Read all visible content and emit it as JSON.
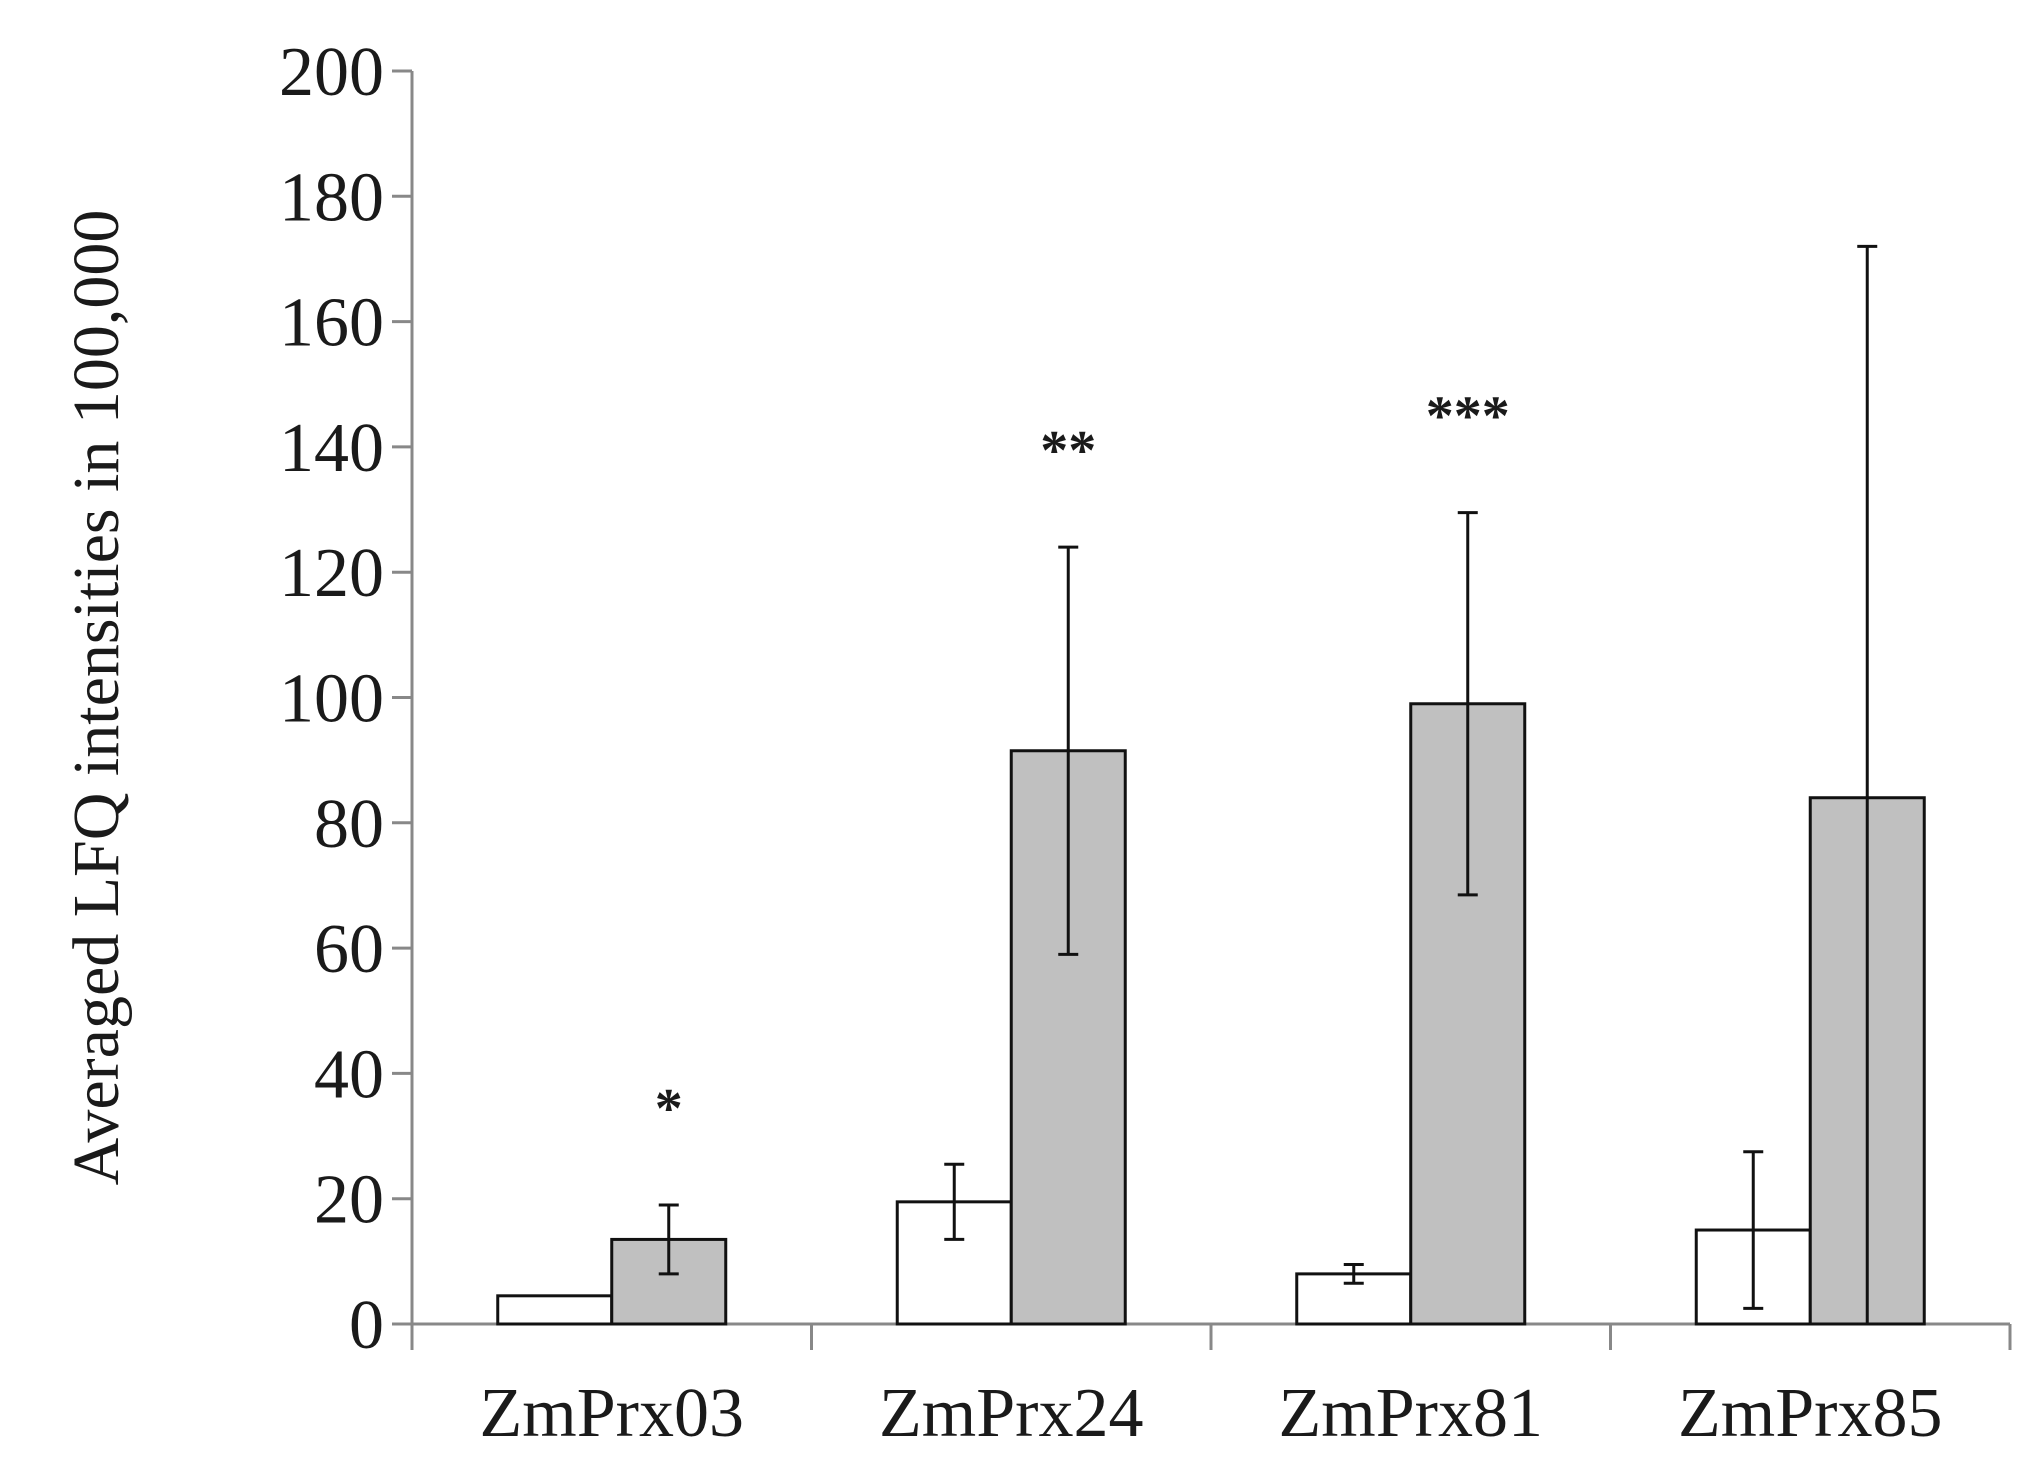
{
  "chart_data": {
    "type": "bar",
    "title": "",
    "xlabel": "",
    "ylabel": "Averaged LFQ intensities in 100,000",
    "ylim": [
      0,
      200
    ],
    "yticks": [
      0,
      20,
      40,
      60,
      80,
      100,
      120,
      140,
      160,
      180,
      200
    ],
    "categories": [
      "ZmPrx03",
      "ZmPrx24",
      "ZmPrx81",
      "ZmPrx85"
    ],
    "series": [
      {
        "fill": "#ffffff",
        "values": [
          4.5,
          19.5,
          8,
          15
        ],
        "error": [
          0,
          6,
          1.5,
          12.5
        ]
      },
      {
        "fill": "#c0c0c0",
        "values": [
          13.5,
          91.5,
          99,
          84
        ],
        "error": [
          5.5,
          32.5,
          30.5,
          88
        ]
      }
    ],
    "significance": [
      "*",
      "**",
      "***",
      ""
    ],
    "grid": false,
    "legend": "none"
  }
}
